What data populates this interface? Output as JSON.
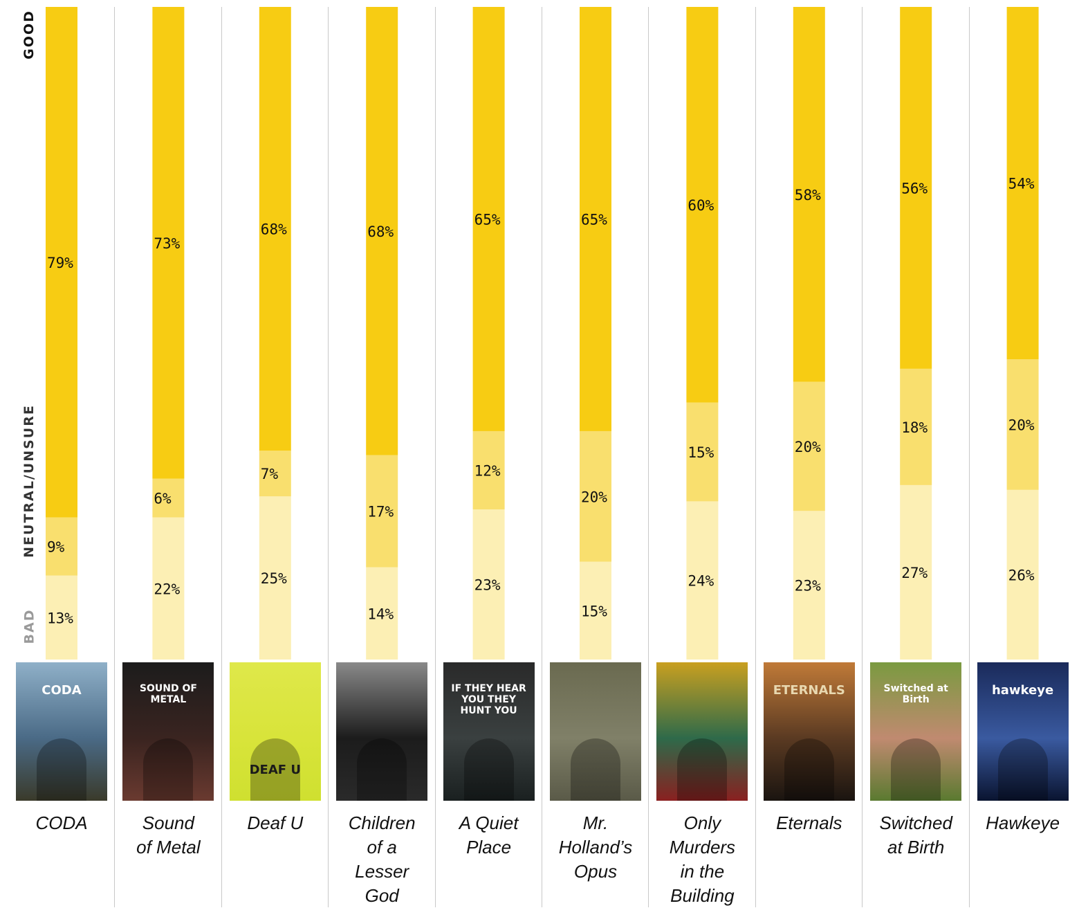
{
  "axis_labels": {
    "good": "GOOD",
    "neutral": "NEUTRAL/UNSURE",
    "bad": "BAD"
  },
  "colors": {
    "good": "#f7cc13",
    "neutral": "#f9df6e",
    "bad": "#fcefb4",
    "label_text": "#111111"
  },
  "value_suffix": "%",
  "chart_data": {
    "type": "bar",
    "stacked": true,
    "ylim": [
      0,
      100
    ],
    "categories": [
      "CODA",
      "Sound of Metal",
      "Deaf U",
      "Children of a Lesser God",
      "A Quiet Place",
      "Mr. Holland’s Opus",
      "Only Murders in the Building",
      "Eternals",
      "Switched at Birth",
      "Hawkeye"
    ],
    "series": [
      {
        "name": "BAD",
        "values": [
          13,
          22,
          25,
          14,
          23,
          15,
          24,
          23,
          27,
          26
        ]
      },
      {
        "name": "NEUTRAL/UNSURE",
        "values": [
          9,
          6,
          7,
          17,
          12,
          20,
          15,
          20,
          18,
          20
        ]
      },
      {
        "name": "GOOD",
        "values": [
          79,
          73,
          68,
          68,
          65,
          65,
          60,
          58,
          56,
          54
        ]
      }
    ]
  },
  "movies": [
    {
      "title_lines": [
        "CODA"
      ],
      "poster": {
        "bg": [
          "#8fb0c8",
          "#4a6a86",
          "#3a3a2a"
        ],
        "text": "CODA",
        "text_color": "#ffffff",
        "icon": "coda-poster-icon"
      }
    },
    {
      "title_lines": [
        "Sound",
        "of Metal"
      ],
      "poster": {
        "bg": [
          "#1c1c1c",
          "#3a2420",
          "#6a3a30"
        ],
        "text": "SOUND OF METAL",
        "text_color": "#ffffff",
        "icon": "sound-of-metal-poster-icon"
      }
    },
    {
      "title_lines": [
        "Deaf U"
      ],
      "poster": {
        "bg": [
          "#dfe84a",
          "#d8e43a",
          "#cfe030"
        ],
        "text": "DEAF U",
        "text_color": "#1a1a1a",
        "icon": "deaf-u-poster-icon"
      }
    },
    {
      "title_lines": [
        "Children",
        "of a",
        "Lesser",
        "God"
      ],
      "poster": {
        "bg": [
          "#8a8a8a",
          "#1c1c1c",
          "#2a2a2a"
        ],
        "text": "",
        "text_color": "#dddddd",
        "icon": "children-of-a-lesser-god-poster-icon"
      }
    },
    {
      "title_lines": [
        "A Quiet",
        "Place"
      ],
      "poster": {
        "bg": [
          "#2a2a2a",
          "#3a4040",
          "#1a2020"
        ],
        "text": "IF THEY HEAR YOU THEY HUNT YOU",
        "text_color": "#ffffff",
        "icon": "a-quiet-place-poster-icon"
      }
    },
    {
      "title_lines": [
        "Mr.",
        "Holland’s",
        "Opus"
      ],
      "poster": {
        "bg": [
          "#6a6a50",
          "#808068",
          "#5a5a48"
        ],
        "text": "",
        "text_color": "#ffffff",
        "icon": "mr-hollands-opus-poster-icon"
      }
    },
    {
      "title_lines": [
        "Only",
        "Murders",
        "in the",
        "Building"
      ],
      "poster": {
        "bg": [
          "#c9a020",
          "#2e6a4a",
          "#8a2020"
        ],
        "text": "",
        "text_color": "#ffffff",
        "icon": "only-murders-poster-icon"
      }
    },
    {
      "title_lines": [
        "Eternals"
      ],
      "poster": {
        "bg": [
          "#c07a38",
          "#5a3a22",
          "#1a1410"
        ],
        "text": "ETERNALS",
        "text_color": "#e8d8b0",
        "icon": "eternals-poster-icon"
      }
    },
    {
      "title_lines": [
        "Switched",
        "at Birth"
      ],
      "poster": {
        "bg": [
          "#7a9a40",
          "#c08a70",
          "#5a7a30"
        ],
        "text": "Switched at Birth",
        "text_color": "#ffffff",
        "icon": "switched-at-birth-poster-icon"
      }
    },
    {
      "title_lines": [
        "Hawkeye"
      ],
      "poster": {
        "bg": [
          "#1a2a5a",
          "#3a5aa0",
          "#0a1430"
        ],
        "text": "hawkeye",
        "text_color": "#ffffff",
        "icon": "hawkeye-poster-icon"
      }
    }
  ]
}
